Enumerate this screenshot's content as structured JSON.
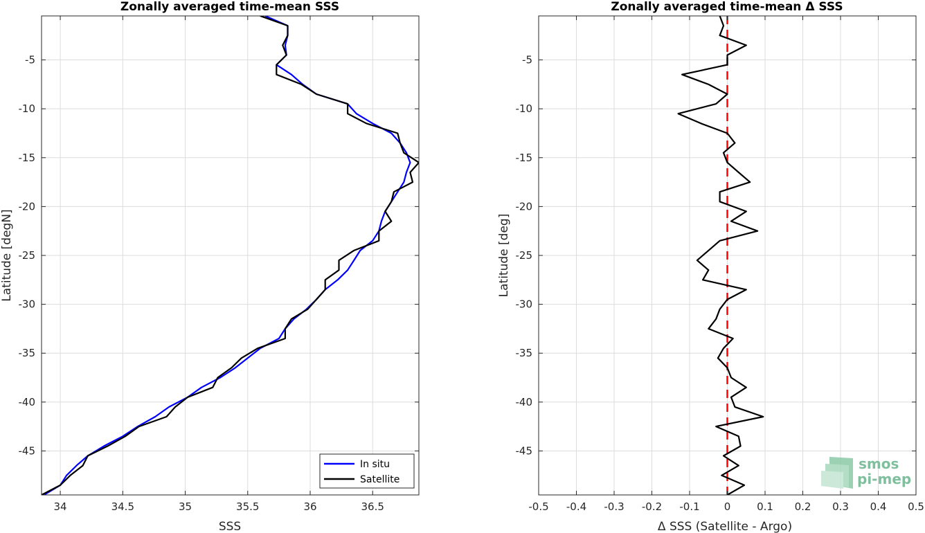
{
  "chart_data": [
    {
      "type": "line",
      "title": "Zonally averaged time-mean SSS",
      "xlabel": "SSS",
      "ylabel": "Latitude [degN]",
      "xlim": [
        33.85,
        36.87
      ],
      "ylim": [
        -49.5,
        -0.5
      ],
      "xticks": [
        34,
        34.5,
        35,
        35.5,
        36,
        36.5
      ],
      "xtick_labels": [
        "34",
        "34.5",
        "35",
        "35.5",
        "36",
        "36.5"
      ],
      "yticks": [
        -5,
        -10,
        -15,
        -20,
        -25,
        -30,
        -35,
        -40,
        -45
      ],
      "ytick_labels": [
        "-5",
        "-10",
        "-15",
        "-20",
        "-25",
        "-30",
        "-35",
        "-40",
        "-45"
      ],
      "grid": true,
      "legend_position": "bottom-right",
      "series": [
        {
          "name": "In situ",
          "color": "#0000ff",
          "points": [
            [
              35.64,
              -0.5
            ],
            [
              35.82,
              -1.5
            ],
            [
              35.82,
              -2.5
            ],
            [
              35.8,
              -3.5
            ],
            [
              35.81,
              -4.5
            ],
            [
              35.73,
              -5.5
            ],
            [
              35.85,
              -6.5
            ],
            [
              35.94,
              -7.5
            ],
            [
              36.05,
              -8.5
            ],
            [
              36.3,
              -9.5
            ],
            [
              36.37,
              -10.5
            ],
            [
              36.5,
              -11.5
            ],
            [
              36.65,
              -12.5
            ],
            [
              36.72,
              -13.5
            ],
            [
              36.77,
              -14.5
            ],
            [
              36.8,
              -15.5
            ],
            [
              36.77,
              -16.5
            ],
            [
              36.75,
              -17.5
            ],
            [
              36.7,
              -18.5
            ],
            [
              36.65,
              -19.5
            ],
            [
              36.6,
              -20.5
            ],
            [
              36.57,
              -21.5
            ],
            [
              36.55,
              -22.5
            ],
            [
              36.5,
              -23.5
            ],
            [
              36.4,
              -24.5
            ],
            [
              36.35,
              -25.5
            ],
            [
              36.3,
              -26.5
            ],
            [
              36.22,
              -27.5
            ],
            [
              36.12,
              -28.5
            ],
            [
              36.05,
              -29.5
            ],
            [
              35.97,
              -30.5
            ],
            [
              35.87,
              -31.5
            ],
            [
              35.8,
              -32.5
            ],
            [
              35.75,
              -33.5
            ],
            [
              35.6,
              -34.5
            ],
            [
              35.5,
              -35.5
            ],
            [
              35.4,
              -36.5
            ],
            [
              35.28,
              -37.5
            ],
            [
              35.13,
              -38.5
            ],
            [
              35.02,
              -39.5
            ],
            [
              34.87,
              -40.5
            ],
            [
              34.76,
              -41.5
            ],
            [
              34.62,
              -42.5
            ],
            [
              34.5,
              -43.5
            ],
            [
              34.35,
              -44.5
            ],
            [
              34.22,
              -45.5
            ],
            [
              34.13,
              -46.5
            ],
            [
              34.05,
              -47.5
            ],
            [
              34.0,
              -48.5
            ],
            [
              33.87,
              -49.5
            ]
          ]
        },
        {
          "name": "Satellite",
          "color": "#000000",
          "points": [
            [
              35.6,
              -0.5
            ],
            [
              35.82,
              -1.5
            ],
            [
              35.82,
              -2.5
            ],
            [
              35.78,
              -3.5
            ],
            [
              35.81,
              -4.5
            ],
            [
              35.73,
              -5.5
            ],
            [
              35.73,
              -6.5
            ],
            [
              35.93,
              -7.5
            ],
            [
              36.05,
              -8.5
            ],
            [
              36.3,
              -9.5
            ],
            [
              36.3,
              -10.5
            ],
            [
              36.45,
              -11.5
            ],
            [
              36.7,
              -12.5
            ],
            [
              36.72,
              -13.5
            ],
            [
              36.75,
              -14.5
            ],
            [
              36.87,
              -15.5
            ],
            [
              36.8,
              -16.5
            ],
            [
              36.82,
              -17.5
            ],
            [
              36.67,
              -18.5
            ],
            [
              36.65,
              -19.5
            ],
            [
              36.6,
              -20.5
            ],
            [
              36.65,
              -21.5
            ],
            [
              36.55,
              -22.5
            ],
            [
              36.55,
              -23.5
            ],
            [
              36.35,
              -24.5
            ],
            [
              36.23,
              -25.5
            ],
            [
              36.23,
              -26.5
            ],
            [
              36.12,
              -27.5
            ],
            [
              36.12,
              -28.5
            ],
            [
              36.05,
              -29.5
            ],
            [
              35.98,
              -30.5
            ],
            [
              35.85,
              -31.5
            ],
            [
              35.8,
              -32.5
            ],
            [
              35.8,
              -33.5
            ],
            [
              35.58,
              -34.5
            ],
            [
              35.45,
              -35.5
            ],
            [
              35.37,
              -36.5
            ],
            [
              35.26,
              -37.5
            ],
            [
              35.22,
              -38.5
            ],
            [
              35.02,
              -39.5
            ],
            [
              34.92,
              -40.5
            ],
            [
              34.85,
              -41.5
            ],
            [
              34.63,
              -42.5
            ],
            [
              34.52,
              -43.5
            ],
            [
              34.38,
              -44.5
            ],
            [
              34.22,
              -45.5
            ],
            [
              34.18,
              -46.5
            ],
            [
              34.08,
              -47.5
            ],
            [
              34.0,
              -48.5
            ],
            [
              33.85,
              -49.5
            ]
          ]
        }
      ]
    },
    {
      "type": "line",
      "title": "Zonally averaged time-mean Δ SSS",
      "xlabel": "Δ SSS (Satellite - Argo)",
      "ylabel": "Latitude [deg]",
      "xlim": [
        -0.5,
        0.5
      ],
      "ylim": [
        -49.5,
        -0.5
      ],
      "xticks": [
        -0.5,
        -0.4,
        -0.3,
        -0.2,
        -0.1,
        0,
        0.1,
        0.2,
        0.3,
        0.4,
        0.5
      ],
      "xtick_labels": [
        "-0.5",
        "-0.4",
        "-0.3",
        "-0.2",
        "-0.1",
        "0",
        "0.1",
        "0.2",
        "0.3",
        "0.4",
        "0.5"
      ],
      "yticks": [
        -5,
        -10,
        -15,
        -20,
        -25,
        -30,
        -35,
        -40,
        -45
      ],
      "ytick_labels": [
        "-5",
        "-10",
        "-15",
        "-20",
        "-25",
        "-30",
        "-35",
        "-40",
        "-45"
      ],
      "grid": true,
      "series": [
        {
          "color": "#000000",
          "points": [
            [
              -0.02,
              -0.5
            ],
            [
              -0.01,
              -1.5
            ],
            [
              -0.02,
              -2.5
            ],
            [
              0.05,
              -3.5
            ],
            [
              0.0,
              -4.5
            ],
            [
              0.0,
              -5.5
            ],
            [
              -0.12,
              -6.5
            ],
            [
              -0.05,
              -7.5
            ],
            [
              0.0,
              -8.5
            ],
            [
              -0.03,
              -9.5
            ],
            [
              -0.13,
              -10.5
            ],
            [
              -0.07,
              -11.5
            ],
            [
              0.0,
              -12.5
            ],
            [
              0.02,
              -13.5
            ],
            [
              -0.01,
              -14.5
            ],
            [
              0.0,
              -15.5
            ],
            [
              0.03,
              -16.5
            ],
            [
              0.06,
              -17.5
            ],
            [
              -0.02,
              -18.5
            ],
            [
              -0.02,
              -19.5
            ],
            [
              0.05,
              -20.5
            ],
            [
              0.01,
              -21.5
            ],
            [
              0.08,
              -22.5
            ],
            [
              -0.02,
              -23.5
            ],
            [
              -0.05,
              -24.5
            ],
            [
              -0.08,
              -25.5
            ],
            [
              -0.05,
              -26.5
            ],
            [
              -0.065,
              -27.5
            ],
            [
              0.05,
              -28.5
            ],
            [
              0.0,
              -29.5
            ],
            [
              -0.02,
              -30.5
            ],
            [
              -0.03,
              -31.5
            ],
            [
              -0.05,
              -32.5
            ],
            [
              0.015,
              -33.5
            ],
            [
              -0.01,
              -34.5
            ],
            [
              -0.025,
              -35.5
            ],
            [
              0.0,
              -36.5
            ],
            [
              0.01,
              -37.5
            ],
            [
              0.05,
              -38.5
            ],
            [
              0.01,
              -39.5
            ],
            [
              0.02,
              -40.5
            ],
            [
              0.095,
              -41.5
            ],
            [
              -0.03,
              -42.5
            ],
            [
              0.03,
              -43.5
            ],
            [
              0.035,
              -44.5
            ],
            [
              -0.01,
              -45.5
            ],
            [
              0.03,
              -46.5
            ],
            [
              -0.015,
              -47.5
            ],
            [
              0.045,
              -48.5
            ],
            [
              0.0,
              -49.5
            ]
          ]
        }
      ],
      "reference_line": {
        "x": 0,
        "color": "#ff0000",
        "style": "dashed"
      }
    }
  ],
  "legend": {
    "items": [
      {
        "label": "In situ",
        "color": "#0000ff"
      },
      {
        "label": "Satellite",
        "color": "#000000"
      }
    ]
  },
  "logo": {
    "line1": "smos",
    "line2": "pi-mep",
    "color": "#7fbf9e"
  }
}
